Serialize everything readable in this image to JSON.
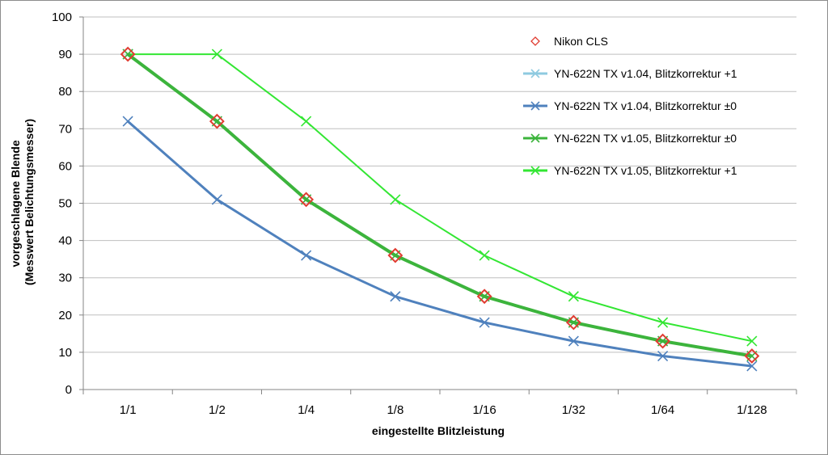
{
  "chart_data": {
    "type": "line",
    "categories": [
      "1/1",
      "1/2",
      "1/4",
      "1/8",
      "1/16",
      "1/32",
      "1/64",
      "1/128"
    ],
    "xlabel": "eingestellte Blitzleistung",
    "ylabel": [
      "vorgeschlagene Blende",
      "(Messwert Belichtungsmesser)"
    ],
    "ylim": [
      0,
      100
    ],
    "yticks": [
      0,
      10,
      20,
      30,
      40,
      50,
      60,
      70,
      80,
      90,
      100
    ],
    "grid": "horizontal",
    "legend": "top-right",
    "series": [
      {
        "name": "Nikon CLS",
        "values": [
          90,
          72,
          51,
          36,
          25,
          18,
          13,
          9
        ],
        "color": "#e03c31",
        "marker": "diamond",
        "line": false
      },
      {
        "name": "YN-622N TX v1.04, Blitzkorrektur +1",
        "values": [
          90,
          72,
          51,
          36,
          25,
          18,
          13,
          9
        ],
        "color": "#8ecae0",
        "marker": "x",
        "line": true
      },
      {
        "name": "YN-622N TX v1.04, Blitzkorrektur ±0",
        "values": [
          72,
          51,
          36,
          25,
          18,
          13,
          9,
          6.3
        ],
        "color": "#4f81bd",
        "marker": "x",
        "line": true
      },
      {
        "name": "YN-622N TX v1.05, Blitzkorrektur ±0",
        "values": [
          90,
          72,
          51,
          36,
          25,
          18,
          13,
          9
        ],
        "color": "#3cb43c",
        "marker": "x",
        "line": true
      },
      {
        "name": "YN-622N TX v1.05, Blitzkorrektur +1",
        "values": [
          90,
          90,
          72,
          51,
          36,
          25,
          18,
          13
        ],
        "color": "#33e633",
        "marker": "x",
        "line": true
      }
    ]
  }
}
